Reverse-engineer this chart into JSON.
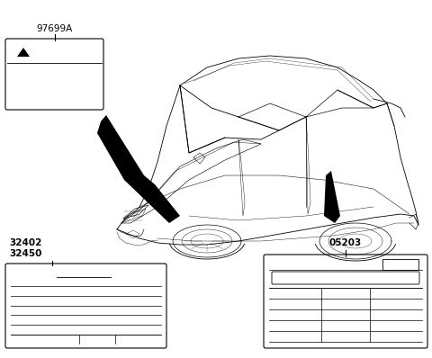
{
  "background_color": "#ffffff",
  "part_numbers": {
    "top_left": "97699A",
    "bottom_left_1": "32402",
    "bottom_left_2": "32450",
    "bottom_right": "05203"
  },
  "car_color": "#000000",
  "car_lw": 0.6,
  "label_lw": 0.8,
  "fig_width": 4.8,
  "fig_height": 3.98,
  "dpi": 100
}
